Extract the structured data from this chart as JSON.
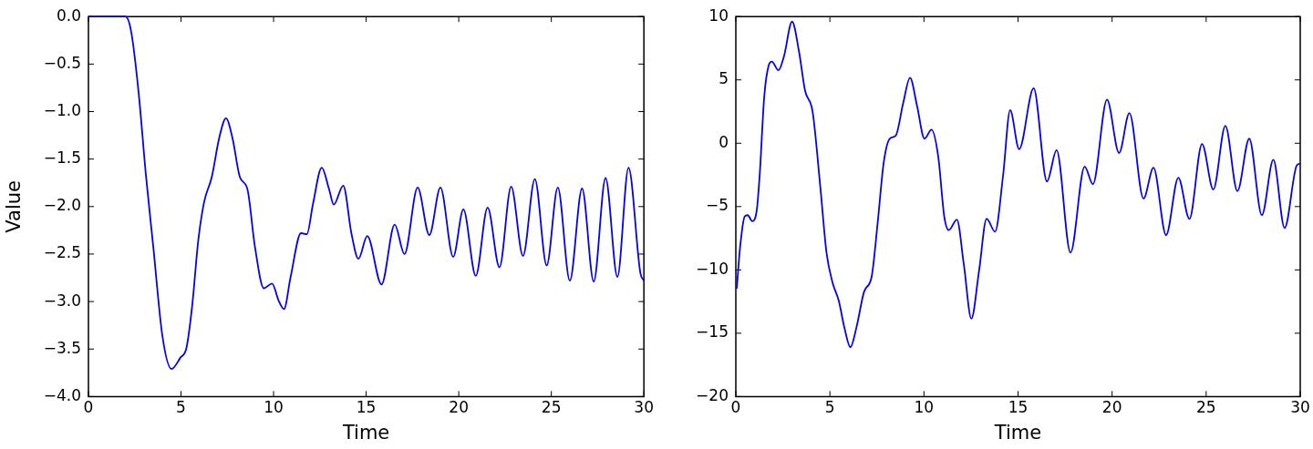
{
  "chart_data": [
    {
      "type": "line",
      "xlabel": "Time",
      "ylabel": "Value",
      "xlim": [
        0,
        30
      ],
      "xticks": [
        0,
        5,
        10,
        15,
        20,
        25,
        30
      ],
      "ylim": [
        -4,
        0
      ],
      "yticks": [
        {
          "value": -4,
          "label": "−4.0"
        },
        {
          "value": -3.5,
          "label": "−3.5"
        },
        {
          "value": -3,
          "label": "−3.0"
        },
        {
          "value": -2.5,
          "label": "−2.5"
        },
        {
          "value": -2,
          "label": "−2.0"
        },
        {
          "value": -1.5,
          "label": "−1.5"
        },
        {
          "value": -1,
          "label": "−1.0"
        },
        {
          "value": -0.5,
          "label": "−0.5"
        },
        {
          "value": 0,
          "label": "0.0"
        }
      ],
      "grid": false,
      "legend": false,
      "marker": "none",
      "line_style": "solid",
      "series": [
        {
          "color": "#0000ff",
          "x": [
            0,
            2.0,
            2.3,
            2.7,
            3.1,
            3.5,
            4.0,
            4.49,
            4.97,
            5.29,
            5.6,
            5.93,
            6.25,
            6.66,
            7.06,
            7.43,
            7.78,
            8.18,
            8.59,
            8.99,
            9.47,
            9.92,
            10.27,
            10.56,
            10.92,
            11.48,
            11.8,
            12.12,
            12.6,
            13.0,
            13.25,
            13.76,
            14.21,
            14.58,
            15.06,
            15.83,
            16.54,
            17.07,
            17.78,
            18.41,
            19.01,
            19.7,
            20.25,
            20.92,
            21.56,
            22.2,
            22.83,
            23.47,
            24.11,
            24.75,
            25.35,
            26.0,
            26.66,
            27.29,
            27.93,
            28.57,
            29.17,
            29.81,
            30
          ],
          "values": [
            0,
            0,
            -0.15,
            -0.78,
            -1.66,
            -2.42,
            -3.37,
            -3.71,
            -3.59,
            -3.49,
            -3.05,
            -2.36,
            -1.95,
            -1.69,
            -1.28,
            -1.07,
            -1.28,
            -1.69,
            -1.82,
            -2.42,
            -2.86,
            -2.81,
            -2.99,
            -3.08,
            -2.74,
            -2.28,
            -2.29,
            -1.98,
            -1.59,
            -1.82,
            -1.98,
            -1.78,
            -2.29,
            -2.55,
            -2.31,
            -2.82,
            -2.19,
            -2.5,
            -1.8,
            -2.3,
            -1.8,
            -2.53,
            -2.03,
            -2.73,
            -2.01,
            -2.64,
            -1.79,
            -2.52,
            -1.71,
            -2.62,
            -1.8,
            -2.78,
            -1.81,
            -2.79,
            -1.7,
            -2.74,
            -1.59,
            -2.7,
            -2.78
          ]
        }
      ]
    },
    {
      "type": "line",
      "xlabel": "Time",
      "xlim": [
        0,
        30
      ],
      "xticks": [
        0,
        5,
        10,
        15,
        20,
        25,
        30
      ],
      "ylim": [
        -20,
        10
      ],
      "yticks": [
        {
          "value": -20,
          "label": "−20"
        },
        {
          "value": -15,
          "label": "−15"
        },
        {
          "value": -10,
          "label": "−10"
        },
        {
          "value": -5,
          "label": "−5"
        },
        0,
        5,
        10
      ],
      "grid": false,
      "legend": false,
      "marker": "none",
      "line_style": "solid",
      "series": [
        {
          "color": "#0000ff",
          "x": [
            0.05,
            0.23,
            0.47,
            0.63,
            0.87,
            1.11,
            1.27,
            1.51,
            1.75,
            1.91,
            2.27,
            2.56,
            2.99,
            3.36,
            3.68,
            4.08,
            4.49,
            4.82,
            5.14,
            5.47,
            5.77,
            6.09,
            6.41,
            6.82,
            7.22,
            7.54,
            7.86,
            8.18,
            8.5,
            8.9,
            9.26,
            9.63,
            10.03,
            10.4,
            10.76,
            11.08,
            11.32,
            11.75,
            12.12,
            12.52,
            12.93,
            13.33,
            13.78,
            14.21,
            14.58,
            15.06,
            15.83,
            16.54,
            17.05,
            17.79,
            18.54,
            18.98,
            19.73,
            20.37,
            20.92,
            21.67,
            22.2,
            22.87,
            23.52,
            24.11,
            24.78,
            25.38,
            26.02,
            26.66,
            27.29,
            27.96,
            28.57,
            29.17,
            29.81,
            30
          ],
          "values": [
            -11.48,
            -8.16,
            -5.79,
            -5.68,
            -6.15,
            -5.32,
            -2.48,
            3.68,
            6.16,
            6.45,
            5.76,
            6.87,
            9.6,
            7.23,
            4.15,
            2.49,
            -3.43,
            -8.64,
            -11.0,
            -12.42,
            -14.55,
            -16.1,
            -14.55,
            -11.71,
            -10.53,
            -6.27,
            -1.53,
            0.36,
            0.6,
            3.2,
            5.17,
            2.97,
            0.36,
            1.07,
            -1.06,
            -5.79,
            -6.86,
            -6.03,
            -9.58,
            -13.85,
            -10.06,
            -5.96,
            -6.98,
            -2.48,
            2.61,
            -0.47,
            4.34,
            -3.02,
            -0.54,
            -8.64,
            -1.84,
            -3.24,
            3.44,
            -0.77,
            2.38,
            -4.37,
            -1.93,
            -7.26,
            -2.72,
            -5.98,
            -0.06,
            -3.66,
            1.38,
            -3.78,
            0.36,
            -5.68,
            -1.3,
            -6.69,
            -1.77,
            -1.6
          ]
        }
      ]
    }
  ]
}
